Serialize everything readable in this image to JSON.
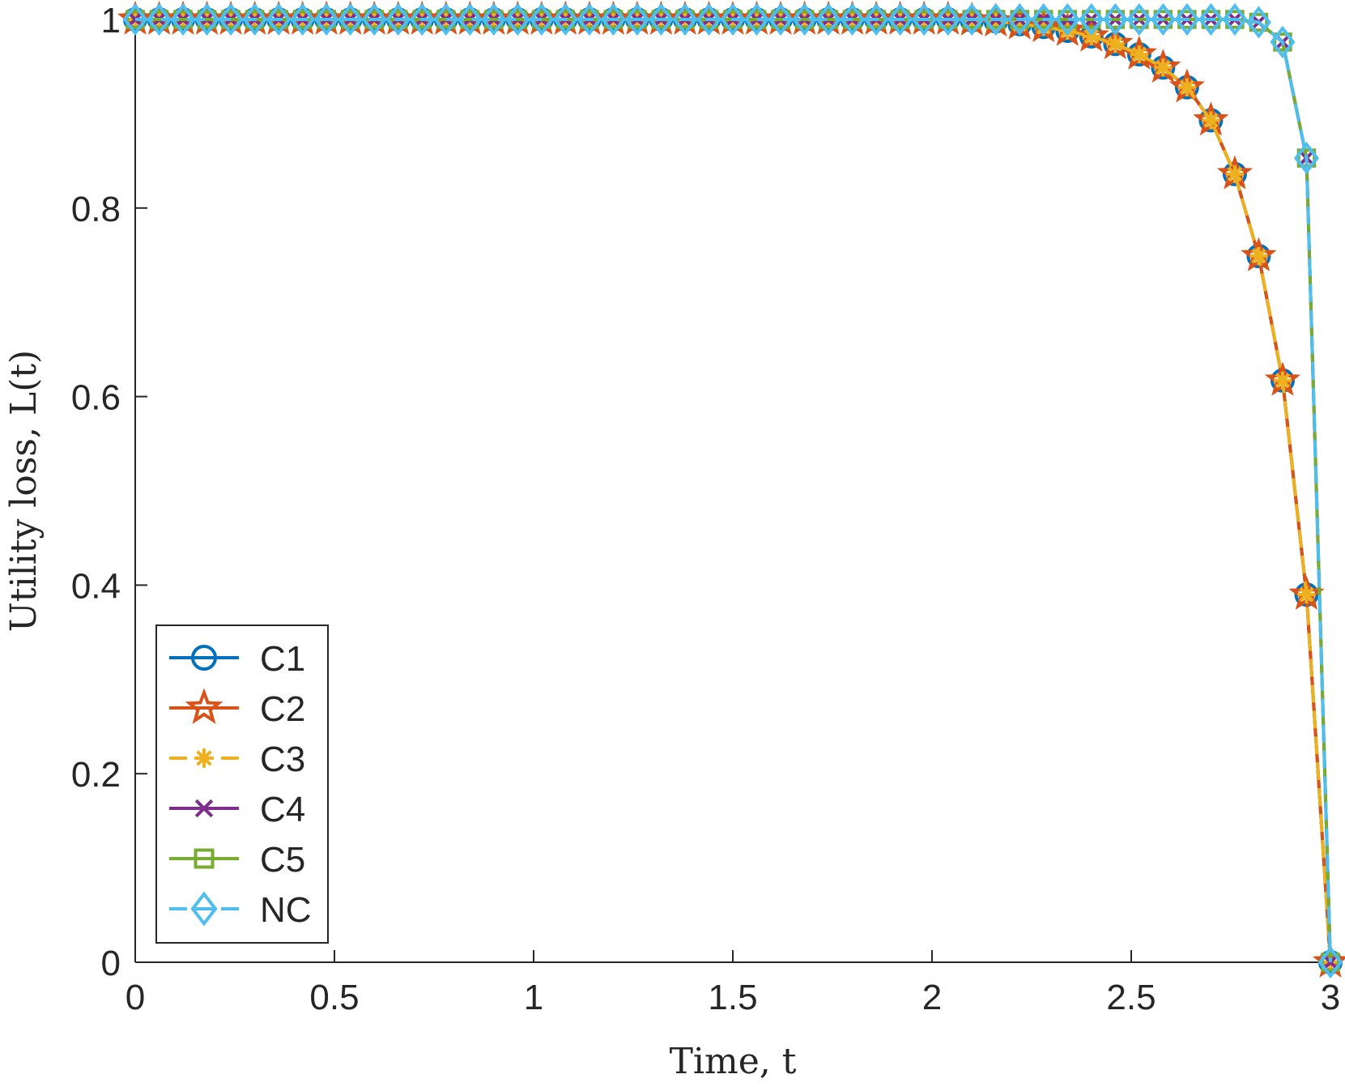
{
  "chart_data": {
    "type": "line",
    "xlabel": "Time, t",
    "ylabel": "Utility loss, L(t)",
    "xlim": [
      0,
      3
    ],
    "ylim": [
      0,
      1
    ],
    "xticks": [
      "0",
      "0.5",
      "1",
      "1.5",
      "2",
      "2.5",
      "3"
    ],
    "yticks": [
      "0",
      "0.2",
      "0.4",
      "0.6",
      "0.8",
      "1"
    ],
    "grid": false,
    "legend": {
      "location": "lower-left"
    },
    "x": [
      0,
      0.06,
      0.12,
      0.18,
      0.24,
      0.3,
      0.36,
      0.42,
      0.48,
      0.54,
      0.6,
      0.66,
      0.72,
      0.78,
      0.84,
      0.9,
      0.96,
      1.02,
      1.08,
      1.14,
      1.2,
      1.26,
      1.32,
      1.38,
      1.44,
      1.5,
      1.56,
      1.62,
      1.68,
      1.74,
      1.8,
      1.86,
      1.92,
      1.98,
      2.04,
      2.1,
      2.16,
      2.22,
      2.28,
      2.34,
      2.4,
      2.46,
      2.52,
      2.58,
      2.64,
      2.7,
      2.76,
      2.82,
      2.88,
      2.94,
      3.0
    ],
    "series": [
      {
        "name": "C1",
        "color": "#0072bd",
        "marker": "circle",
        "dash": "solid",
        "values": [
          1,
          1,
          1,
          1,
          1,
          1,
          1,
          1,
          1,
          1,
          1,
          1,
          1,
          1,
          1,
          1,
          1,
          1,
          1,
          1,
          1,
          1,
          1,
          1,
          1,
          1,
          1,
          1,
          1,
          1,
          1,
          1,
          1,
          1,
          1,
          0.999,
          0.998,
          0.995,
          0.992,
          0.988,
          0.982,
          0.974,
          0.963,
          0.949,
          0.928,
          0.893,
          0.836,
          0.749,
          0.617,
          0.39,
          0
        ]
      },
      {
        "name": "C2",
        "color": "#d95319",
        "marker": "star",
        "dash": "solid",
        "values": [
          1,
          1,
          1,
          1,
          1,
          1,
          1,
          1,
          1,
          1,
          1,
          1,
          1,
          1,
          1,
          1,
          1,
          1,
          1,
          1,
          1,
          1,
          1,
          1,
          1,
          1,
          1,
          1,
          1,
          1,
          1,
          1,
          1,
          1,
          1,
          0.999,
          0.998,
          0.995,
          0.992,
          0.988,
          0.982,
          0.974,
          0.963,
          0.949,
          0.928,
          0.893,
          0.836,
          0.749,
          0.617,
          0.39,
          0
        ]
      },
      {
        "name": "C3",
        "color": "#edb120",
        "marker": "asterisk",
        "dash": "dashed",
        "values": [
          1,
          1,
          1,
          1,
          1,
          1,
          1,
          1,
          1,
          1,
          1,
          1,
          1,
          1,
          1,
          1,
          1,
          1,
          1,
          1,
          1,
          1,
          1,
          1,
          1,
          1,
          1,
          1,
          1,
          1,
          1,
          1,
          1,
          1,
          1,
          0.999,
          0.998,
          0.995,
          0.992,
          0.988,
          0.982,
          0.974,
          0.963,
          0.949,
          0.928,
          0.893,
          0.836,
          0.749,
          0.617,
          0.39,
          0
        ]
      },
      {
        "name": "C4",
        "color": "#7e2f8e",
        "marker": "x",
        "dash": "solid",
        "values": [
          1,
          1,
          1,
          1,
          1,
          1,
          1,
          1,
          1,
          1,
          1,
          1,
          1,
          1,
          1,
          1,
          1,
          1,
          1,
          1,
          1,
          1,
          1,
          1,
          1,
          1,
          1,
          1,
          1,
          1,
          1,
          1,
          1,
          1,
          1,
          1,
          1,
          1,
          1,
          1,
          1,
          1,
          1,
          1,
          1,
          1,
          1,
          0.997,
          0.976,
          0.853,
          0
        ]
      },
      {
        "name": "C5",
        "color": "#77ac30",
        "marker": "square",
        "dash": "solid",
        "values": [
          1,
          1,
          1,
          1,
          1,
          1,
          1,
          1,
          1,
          1,
          1,
          1,
          1,
          1,
          1,
          1,
          1,
          1,
          1,
          1,
          1,
          1,
          1,
          1,
          1,
          1,
          1,
          1,
          1,
          1,
          1,
          1,
          1,
          1,
          1,
          1,
          1,
          1,
          1,
          1,
          1,
          1,
          1,
          1,
          1,
          1,
          1,
          0.997,
          0.976,
          0.853,
          0
        ]
      },
      {
        "name": "NC",
        "color": "#4dbeee",
        "marker": "diamond",
        "dash": "dashed",
        "values": [
          1,
          1,
          1,
          1,
          1,
          1,
          1,
          1,
          1,
          1,
          1,
          1,
          1,
          1,
          1,
          1,
          1,
          1,
          1,
          1,
          1,
          1,
          1,
          1,
          1,
          1,
          1,
          1,
          1,
          1,
          1,
          1,
          1,
          1,
          1,
          1,
          1,
          1,
          1,
          1,
          1,
          1,
          1,
          1,
          1,
          1,
          1,
          0.997,
          0.976,
          0.853,
          0
        ]
      }
    ]
  }
}
